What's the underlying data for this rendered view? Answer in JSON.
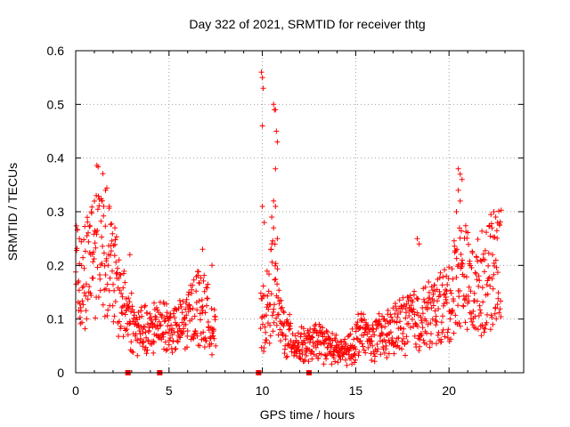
{
  "chart_data": {
    "type": "scatter",
    "title": "Day 322 of 2021, SRMTID for receiver thtg",
    "xlabel": "GPS time / hours",
    "ylabel": "SRMTID / TECUs",
    "xlim": [
      0,
      24
    ],
    "ylim": [
      0,
      0.6
    ],
    "xticks": [
      0,
      5,
      10,
      15,
      20
    ],
    "xtick_labels": [
      "0",
      "5",
      "10",
      "15",
      "20"
    ],
    "yticks": [
      0,
      0.1,
      0.2,
      0.3,
      0.4,
      0.5,
      0.6
    ],
    "ytick_labels": [
      "0",
      "0.1",
      "0.2",
      "0.3",
      "0.4",
      "0.5",
      "0.6"
    ],
    "grid": true,
    "series": [
      {
        "name": "SRMTID",
        "color": "#ff0000",
        "marker": "plus",
        "profile": [
          [
            0.0,
            0.2
          ],
          [
            0.3,
            0.16
          ],
          [
            0.6,
            0.2
          ],
          [
            1.0,
            0.24
          ],
          [
            1.3,
            0.27
          ],
          [
            1.6,
            0.24
          ],
          [
            2.0,
            0.18
          ],
          [
            2.4,
            0.14
          ],
          [
            2.8,
            0.11
          ],
          [
            3.2,
            0.08
          ],
          [
            3.6,
            0.08
          ],
          [
            4.0,
            0.07
          ],
          [
            4.5,
            0.1
          ],
          [
            5.0,
            0.08
          ],
          [
            5.5,
            0.08
          ],
          [
            6.0,
            0.1
          ],
          [
            6.5,
            0.13
          ],
          [
            7.0,
            0.11
          ],
          [
            7.5,
            0.07
          ],
          [
            9.9,
            0.09
          ],
          [
            10.3,
            0.12
          ],
          [
            10.6,
            0.18
          ],
          [
            10.9,
            0.1
          ],
          [
            11.3,
            0.07
          ],
          [
            12.0,
            0.05
          ],
          [
            12.5,
            0.05
          ],
          [
            13.0,
            0.06
          ],
          [
            13.5,
            0.05
          ],
          [
            14.0,
            0.04
          ],
          [
            14.5,
            0.04
          ],
          [
            14.9,
            0.05
          ],
          [
            15.2,
            0.08
          ],
          [
            15.8,
            0.06
          ],
          [
            16.5,
            0.07
          ],
          [
            17.0,
            0.08
          ],
          [
            17.5,
            0.09
          ],
          [
            18.0,
            0.1
          ],
          [
            18.5,
            0.1
          ],
          [
            19.0,
            0.11
          ],
          [
            19.5,
            0.12
          ],
          [
            20.0,
            0.13
          ],
          [
            20.4,
            0.18
          ],
          [
            20.8,
            0.19
          ],
          [
            21.2,
            0.15
          ],
          [
            21.6,
            0.16
          ],
          [
            22.0,
            0.18
          ],
          [
            22.5,
            0.19
          ],
          [
            22.8,
            0.2
          ]
        ],
        "spikes": [
          [
            0.2,
            0.25
          ],
          [
            1.1,
            0.33
          ],
          [
            1.4,
            0.32
          ],
          [
            1.6,
            0.34
          ],
          [
            1.8,
            0.31
          ],
          [
            2.1,
            0.27
          ],
          [
            2.9,
            0.22
          ],
          [
            4.2,
            0.13
          ],
          [
            6.8,
            0.23
          ],
          [
            7.3,
            0.2
          ],
          [
            9.95,
            0.56
          ],
          [
            10.0,
            0.55
          ],
          [
            10.05,
            0.53
          ],
          [
            10.0,
            0.46
          ],
          [
            10.0,
            0.31
          ],
          [
            10.1,
            0.28
          ],
          [
            10.6,
            0.5
          ],
          [
            10.65,
            0.49
          ],
          [
            10.7,
            0.49
          ],
          [
            10.75,
            0.45
          ],
          [
            10.8,
            0.43
          ],
          [
            10.7,
            0.38
          ],
          [
            10.6,
            0.32
          ],
          [
            10.7,
            0.31
          ],
          [
            10.5,
            0.29
          ],
          [
            10.6,
            0.27
          ],
          [
            10.8,
            0.25
          ],
          [
            18.3,
            0.25
          ],
          [
            18.4,
            0.24
          ],
          [
            20.5,
            0.38
          ],
          [
            20.6,
            0.37
          ],
          [
            20.7,
            0.36
          ],
          [
            20.5,
            0.34
          ],
          [
            20.6,
            0.32
          ],
          [
            20.4,
            0.3
          ],
          [
            22.4,
            0.3
          ],
          [
            22.5,
            0.29
          ],
          [
            22.6,
            0.28
          ],
          [
            22.3,
            0.27
          ]
        ],
        "zero_markers": [
          2.8,
          4.5,
          9.8,
          12.5
        ]
      }
    ]
  }
}
